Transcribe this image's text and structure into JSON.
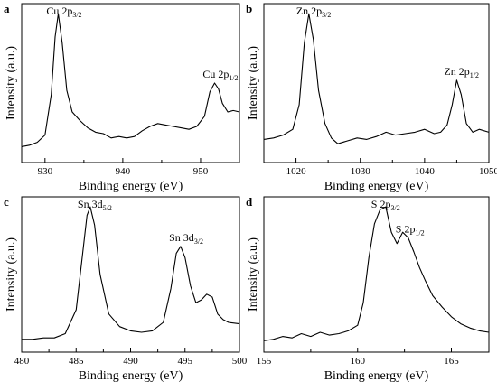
{
  "figure": {
    "colors": {
      "line": "#000000",
      "background": "#ffffff"
    }
  },
  "chart_data": [
    {
      "type": "line",
      "panel": "a",
      "xlabel": "Binding energy (eV)",
      "ylabel": "Intensity (a.u.)",
      "xlim": [
        927,
        955
      ],
      "xticks": [
        930,
        940,
        950
      ],
      "tick_labels": [
        "930",
        "940",
        "950"
      ],
      "ylim": [
        0,
        1
      ],
      "grid": false,
      "y_tick_labels": false,
      "annotations": [
        {
          "text": "Cu 2p",
          "sub": "3/2",
          "x": 931.8
        },
        {
          "text": "Cu 2p",
          "sub": "1/2",
          "x": 951.9
        }
      ],
      "series": [
        {
          "x": [
            927,
            928,
            929,
            930,
            930.8,
            931.3,
            931.7,
            932.2,
            932.8,
            933.5,
            934.5,
            935.5,
            936.5,
            937.5,
            938.5,
            939.5,
            940.5,
            941.5,
            942.5,
            943.5,
            944.5,
            945.5,
            946.5,
            947.5,
            948.5,
            949.5,
            950.5,
            951.2,
            951.8,
            952.3,
            952.8,
            953.5,
            954.2,
            955
          ],
          "y": [
            0.06,
            0.07,
            0.09,
            0.14,
            0.42,
            0.82,
            0.98,
            0.78,
            0.45,
            0.3,
            0.24,
            0.19,
            0.16,
            0.15,
            0.12,
            0.13,
            0.12,
            0.13,
            0.17,
            0.2,
            0.22,
            0.21,
            0.2,
            0.19,
            0.18,
            0.2,
            0.27,
            0.44,
            0.5,
            0.46,
            0.36,
            0.3,
            0.31,
            0.3
          ]
        }
      ]
    },
    {
      "type": "line",
      "panel": "b",
      "xlabel": "Binding energy (eV)",
      "ylabel": "Intensity (a.u.)",
      "xlim": [
        1015,
        1050
      ],
      "xticks": [
        1020,
        1030,
        1040,
        1050
      ],
      "tick_labels": [
        "1020",
        "1030",
        "1040",
        "1050"
      ],
      "ylim": [
        0,
        1
      ],
      "grid": false,
      "y_tick_labels": false,
      "annotations": [
        {
          "text": "Zn 2p",
          "sub": "3/2",
          "x": 1022
        },
        {
          "text": "Zn 2p",
          "sub": "1/2",
          "x": 1045
        }
      ],
      "series": [
        {
          "x": [
            1015,
            1016.5,
            1018,
            1019.5,
            1020.5,
            1021.3,
            1022,
            1022.7,
            1023.5,
            1024.5,
            1025.5,
            1026.5,
            1028,
            1029.5,
            1031,
            1032.5,
            1034,
            1035.5,
            1037,
            1038.5,
            1040,
            1041.5,
            1042.5,
            1043.5,
            1044.3,
            1045,
            1045.7,
            1046.5,
            1047.5,
            1048.5,
            1050
          ],
          "y": [
            0.11,
            0.12,
            0.14,
            0.18,
            0.35,
            0.78,
            0.98,
            0.8,
            0.45,
            0.22,
            0.12,
            0.08,
            0.1,
            0.12,
            0.11,
            0.13,
            0.16,
            0.14,
            0.15,
            0.16,
            0.18,
            0.15,
            0.16,
            0.21,
            0.35,
            0.52,
            0.42,
            0.22,
            0.16,
            0.18,
            0.16
          ]
        }
      ]
    },
    {
      "type": "line",
      "panel": "c",
      "xlabel": "Binding energy (eV)",
      "ylabel": "Intensity (a.u.)",
      "xlim": [
        480,
        500
      ],
      "xticks": [
        480,
        485,
        490,
        495,
        500
      ],
      "tick_labels": [
        "480",
        "485",
        "490",
        "495",
        "500"
      ],
      "ylim": [
        0,
        1
      ],
      "grid": false,
      "y_tick_labels": false,
      "annotations": [
        {
          "text": "Sn 3d",
          "sub": "5/2",
          "x": 486.3
        },
        {
          "text": "Sn 3d",
          "sub": "3/2",
          "x": 494.7
        }
      ],
      "series": [
        {
          "x": [
            480,
            481,
            482,
            483,
            484,
            485,
            485.6,
            486,
            486.3,
            486.7,
            487.2,
            488,
            489,
            490,
            491,
            492,
            493,
            493.7,
            494.2,
            494.6,
            495,
            495.5,
            496,
            496.5,
            497,
            497.5,
            498,
            498.5,
            499,
            500
          ],
          "y": [
            0.04,
            0.04,
            0.05,
            0.05,
            0.08,
            0.25,
            0.65,
            0.92,
            0.98,
            0.85,
            0.5,
            0.22,
            0.13,
            0.1,
            0.09,
            0.1,
            0.16,
            0.4,
            0.65,
            0.7,
            0.62,
            0.42,
            0.3,
            0.32,
            0.36,
            0.34,
            0.22,
            0.18,
            0.16,
            0.15
          ]
        }
      ]
    },
    {
      "type": "line",
      "panel": "d",
      "xlabel": "Binding energy (eV)",
      "ylabel": "Intensity (a.u.)",
      "xlim": [
        155,
        167
      ],
      "xticks": [
        155,
        160,
        165
      ],
      "tick_labels": [
        "155",
        "160",
        "165"
      ],
      "ylim": [
        0,
        1
      ],
      "grid": false,
      "y_tick_labels": false,
      "annotations": [
        {
          "text": "S 2p",
          "sub": "3/2",
          "x": 161.4
        },
        {
          "text": "S 2p",
          "sub": "1/2",
          "x": 162.7
        }
      ],
      "series": [
        {
          "x": [
            155,
            155.5,
            156,
            156.5,
            157,
            157.5,
            158,
            158.5,
            159,
            159.5,
            160,
            160.3,
            160.6,
            160.9,
            161.2,
            161.5,
            161.8,
            162.1,
            162.4,
            162.7,
            163,
            163.3,
            163.6,
            164,
            164.5,
            165,
            165.5,
            166,
            166.5,
            167
          ],
          "y": [
            0.03,
            0.04,
            0.06,
            0.05,
            0.08,
            0.06,
            0.09,
            0.07,
            0.08,
            0.1,
            0.14,
            0.3,
            0.62,
            0.86,
            0.96,
            0.98,
            0.8,
            0.72,
            0.8,
            0.76,
            0.66,
            0.55,
            0.46,
            0.35,
            0.27,
            0.2,
            0.15,
            0.12,
            0.1,
            0.09
          ]
        }
      ]
    }
  ]
}
